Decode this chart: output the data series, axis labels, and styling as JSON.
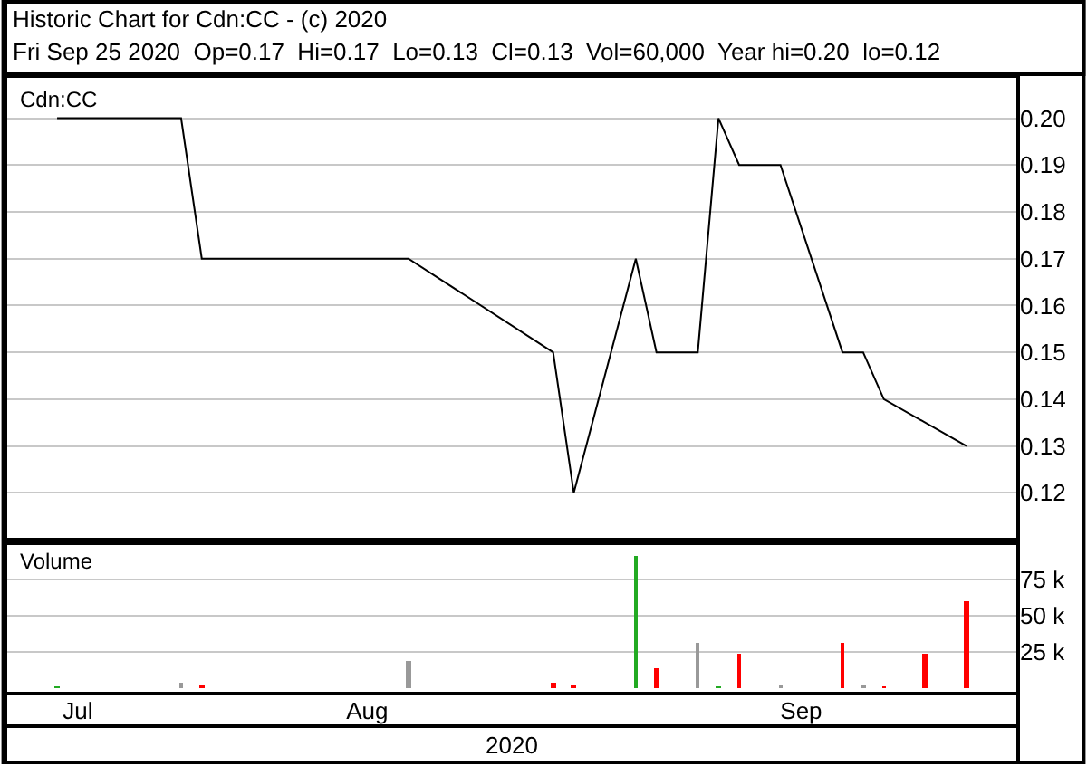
{
  "chart_data": [
    {
      "type": "line",
      "title": "Historic Chart for Cdn:CC - (c) 2020",
      "subtitle": "Fri Sep 25 2020  Op=0.17  Hi=0.17  Lo=0.13  Cl=0.13  Vol=60,000  Year hi=0.20  lo=0.12",
      "categories": [
        null,
        null,
        null,
        null,
        null,
        null,
        null,
        null,
        null,
        null,
        null,
        null,
        null,
        null,
        null,
        null,
        null,
        null,
        null,
        null,
        null,
        null,
        null,
        null,
        null,
        null,
        null,
        null,
        null,
        null,
        null,
        null,
        null,
        null,
        null,
        null,
        null,
        null,
        null,
        null,
        null,
        null,
        null,
        null,
        null,
        null,
        null,
        null,
        null
      ],
      "series": [
        {
          "name": "Cdn:CC",
          "color": "#000000",
          "values": [
            null,
            null,
            0.2,
            null,
            null,
            null,
            null,
            null,
            0.2,
            0.17,
            null,
            null,
            null,
            null,
            null,
            null,
            null,
            null,
            null,
            0.17,
            null,
            null,
            null,
            null,
            null,
            null,
            0.15,
            0.12,
            null,
            null,
            0.17,
            0.15,
            null,
            0.15,
            0.2,
            0.19,
            null,
            0.19,
            null,
            null,
            0.15,
            0.15,
            0.14,
            null,
            null,
            null,
            0.13,
            null,
            null
          ]
        }
      ],
      "ylim": [
        0.11,
        0.209
      ],
      "yticks": [
        0.12,
        0.13,
        0.14,
        0.15,
        0.16,
        0.17,
        0.18,
        0.19,
        {
          "value": 0.2,
          "label": "0.20"
        }
      ],
      "grid": "y",
      "tick_labels": "y"
    },
    {
      "type": "bar",
      "categories": [
        null,
        null,
        null,
        "Jul",
        null,
        null,
        null,
        null,
        null,
        null,
        null,
        null,
        null,
        null,
        null,
        null,
        null,
        "Aug",
        null,
        null,
        null,
        null,
        null,
        null,
        null,
        null,
        null,
        null,
        null,
        null,
        null,
        null,
        null,
        null,
        null,
        null,
        null,
        null,
        "Sep",
        null,
        null,
        null,
        null,
        null,
        null,
        null,
        null,
        null,
        null
      ],
      "series": [
        {
          "name": "Volume",
          "values": [
            null,
            null,
            1000,
            null,
            null,
            null,
            null,
            null,
            4000,
            2000,
            null,
            null,
            null,
            null,
            null,
            null,
            null,
            null,
            null,
            18000,
            null,
            null,
            null,
            null,
            null,
            null,
            3000,
            2000,
            null,
            null,
            91000,
            13000,
            null,
            31000,
            1000,
            23000,
            null,
            2000,
            null,
            null,
            31000,
            2000,
            1000,
            null,
            24000,
            null,
            60000,
            null,
            null
          ],
          "colors": [
            null,
            null,
            "#22aa22",
            null,
            null,
            null,
            null,
            null,
            "#999999",
            "#ff0000",
            null,
            null,
            null,
            null,
            null,
            null,
            null,
            null,
            null,
            "#999999",
            null,
            null,
            null,
            null,
            null,
            null,
            "#ff0000",
            "#ff0000",
            null,
            null,
            "#22aa22",
            "#ff0000",
            null,
            "#999999",
            "#22aa22",
            "#ff0000",
            null,
            "#999999",
            null,
            null,
            "#ff0000",
            "#999999",
            "#ff0000",
            null,
            "#ff0000",
            null,
            "#ff0000",
            null,
            null
          ]
        }
      ],
      "ylim": [
        -4000,
        100000
      ],
      "yticks": [
        {
          "value": 25000,
          "label": "25 k"
        },
        {
          "value": 50000,
          "label": "50 k"
        },
        {
          "value": 75000,
          "label": "75 k"
        }
      ],
      "grid": "y",
      "annotations": [
        "2020"
      ]
    }
  ]
}
